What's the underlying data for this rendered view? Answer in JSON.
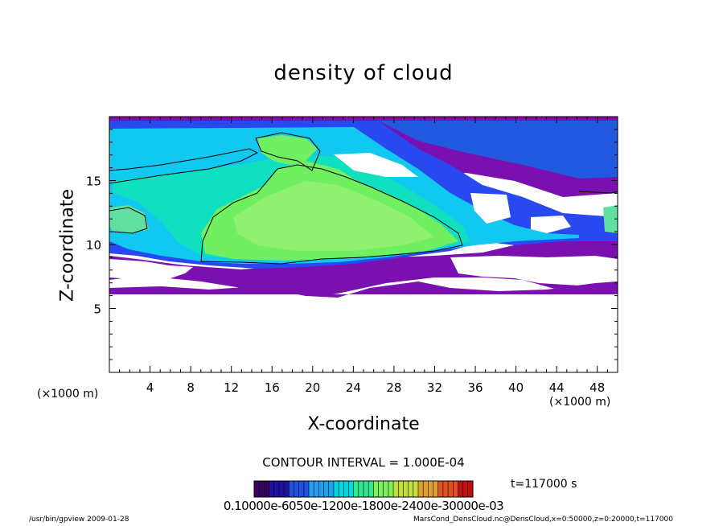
{
  "chart_data": {
    "type": "heatmap",
    "title": "density of cloud",
    "xlabel": "X-coordinate",
    "ylabel": "Z-coordinate",
    "xunit": "(×1000 m)",
    "x_ticks": [
      4,
      8,
      12,
      16,
      20,
      24,
      28,
      32,
      36,
      40,
      44,
      48
    ],
    "y_ticks": [
      5,
      10,
      15
    ],
    "xlim": [
      0,
      50
    ],
    "ylim": [
      0,
      20
    ],
    "contour_interval": "CONTOUR INTERVAL = 1.000E-04",
    "time": "t=117000 s",
    "colorbar_labels": "0.10000e-6050e-1200e-1800e-2400e-30000e-03",
    "colorbar_colors": [
      "#3a0060",
      "#2010a0",
      "#2050e0",
      "#20a0f0",
      "#00d8e0",
      "#30e890",
      "#80f060",
      "#c0e040",
      "#e0a030",
      "#e05020",
      "#c01010"
    ],
    "cloud_colors": {
      "purple": "#7a10b0",
      "blue": "#2848f0",
      "cyan": "#10c8f0",
      "teal": "#10e0c0",
      "green": "#70f060",
      "light_green": "#90f070"
    }
  },
  "footer": {
    "left": "/usr/bin/gpview  2009-01-28",
    "right": "MarsCond_DensCloud.nc@DensCloud,x=0:50000,z=0:20000,t=117000"
  }
}
